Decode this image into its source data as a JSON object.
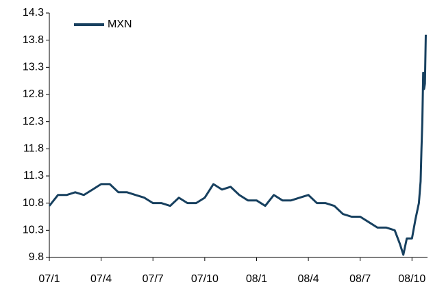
{
  "chart_data": {
    "type": "line",
    "x": [
      0,
      0.5,
      1,
      1.5,
      2,
      2.5,
      3,
      3.5,
      4,
      4.5,
      5,
      5.5,
      6,
      6.5,
      7,
      7.5,
      8,
      8.5,
      9,
      9.5,
      10,
      10.5,
      11,
      11.5,
      12,
      12.5,
      13,
      13.5,
      14,
      14.5,
      15,
      15.5,
      16,
      16.5,
      17,
      17.5,
      18,
      18.5,
      19,
      19.5,
      20,
      20.3,
      20.5,
      20.7,
      21,
      21.2,
      21.4,
      21.5,
      21.55,
      21.6,
      21.65,
      21.7,
      21.75,
      21.8
    ],
    "series": [
      {
        "name": "MXN",
        "color": "#17405f",
        "values": [
          10.75,
          10.95,
          10.95,
          11.0,
          10.95,
          11.05,
          11.15,
          11.15,
          11.0,
          11.0,
          10.95,
          10.9,
          10.8,
          10.8,
          10.75,
          10.9,
          10.8,
          10.8,
          10.9,
          11.15,
          11.05,
          11.1,
          10.95,
          10.85,
          10.85,
          10.75,
          10.95,
          10.85,
          10.85,
          10.9,
          10.95,
          10.8,
          10.8,
          10.75,
          10.6,
          10.55,
          10.55,
          10.45,
          10.35,
          10.35,
          10.3,
          10.05,
          9.85,
          10.15,
          10.15,
          10.5,
          10.8,
          11.2,
          11.8,
          12.3,
          13.2,
          12.9,
          13.0,
          13.9
        ]
      }
    ],
    "xlim": [
      0,
      21.9
    ],
    "xticks": [
      {
        "value": 0,
        "label": "07/1"
      },
      {
        "value": 3,
        "label": "07/4"
      },
      {
        "value": 6,
        "label": "07/7"
      },
      {
        "value": 9,
        "label": "07/10"
      },
      {
        "value": 12,
        "label": "08/1"
      },
      {
        "value": 15,
        "label": "08/4"
      },
      {
        "value": 18,
        "label": "08/7"
      },
      {
        "value": 21,
        "label": "08/10"
      }
    ],
    "ylim": [
      9.8,
      14.3
    ],
    "yticks": [
      9.8,
      10.3,
      10.8,
      11.3,
      11.8,
      12.3,
      12.8,
      13.3,
      13.8,
      14.3
    ],
    "grid": false,
    "legend": "upper left"
  }
}
